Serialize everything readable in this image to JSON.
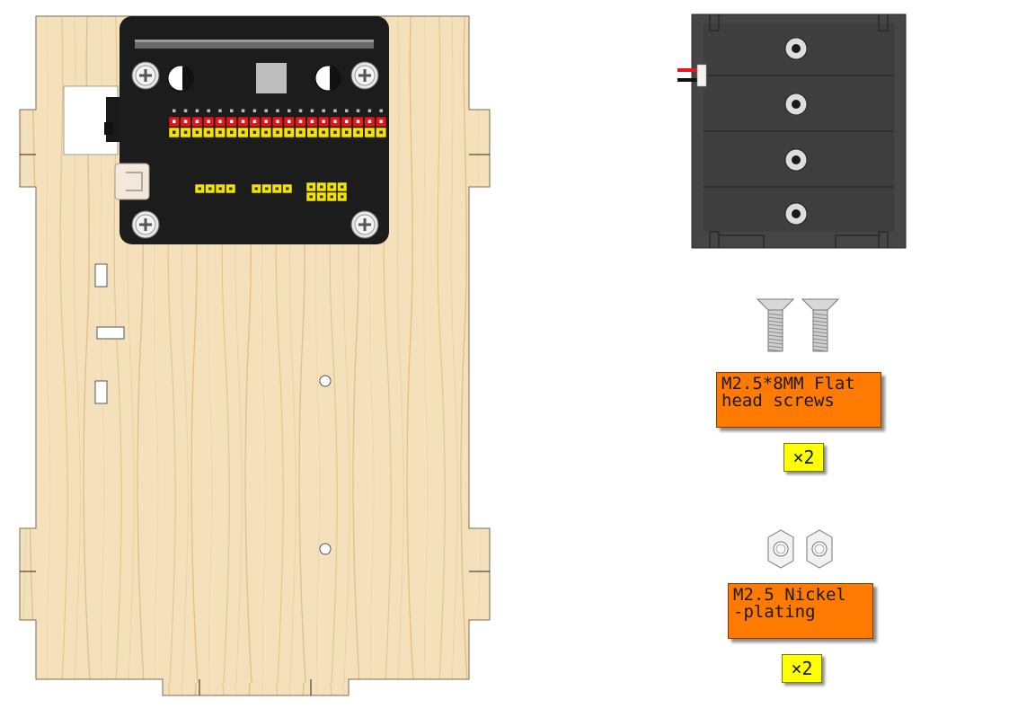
{
  "parts": [
    {
      "id": "screws",
      "label_lines": [
        "M2.5*8MM Flat",
        "head screws"
      ],
      "quantity": "×2"
    },
    {
      "id": "nuts",
      "label_lines": [
        "M2.5 Nickel",
        "-plating"
      ],
      "quantity": "×2"
    }
  ],
  "colors": {
    "wood": "#f3dfb8",
    "wood_grain": "#e3c48c",
    "board": "#1c1c1c",
    "pin_red": "#e8151b",
    "pin_yellow": "#f5e400",
    "battery_box": "#444444",
    "label_bg": "#ff7a00",
    "qty_bg": "#ffff00"
  }
}
